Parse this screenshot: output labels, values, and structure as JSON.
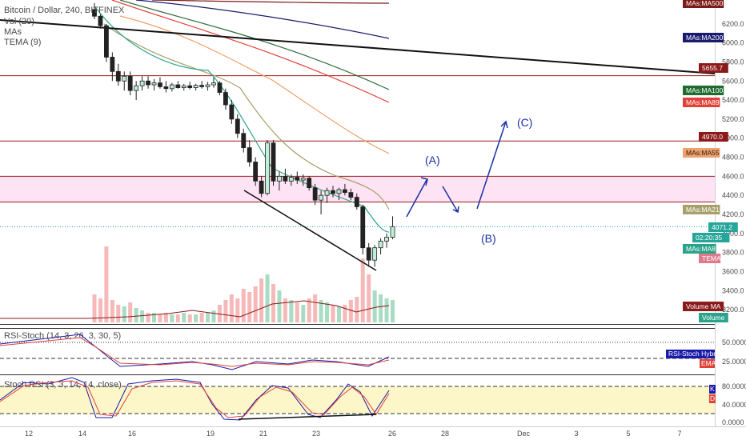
{
  "chart_data": {
    "type": "candlestick",
    "title": "Bitcoin / Dollar, 240, BITFINEX",
    "legend": [
      "Vol (20)",
      "MAs",
      "TEMA (9)"
    ],
    "price_axis": {
      "range": [
        3050,
        6450
      ],
      "ticks": [
        "6200.0",
        "6000.0",
        "5800.0",
        "5600.0",
        "5400.0",
        "5200.0",
        "5000.0",
        "4800.0",
        "4600.0",
        "4400.0",
        "4200.0",
        "4000.0",
        "3800.0",
        "3600.0",
        "3400.0",
        "3200.0"
      ]
    },
    "x_ticks": [
      "12",
      "14",
      "16",
      "19",
      "21",
      "23",
      "26",
      "28",
      "Dec",
      "3",
      "5",
      "7"
    ],
    "ohlc": [
      [
        6350,
        6420,
        6250,
        6280
      ],
      [
        6280,
        6300,
        6150,
        6180
      ],
      [
        6180,
        6200,
        5800,
        5850
      ],
      [
        5850,
        5900,
        5600,
        5700
      ],
      [
        5700,
        5780,
        5550,
        5600
      ],
      [
        5600,
        5700,
        5500,
        5650
      ],
      [
        5650,
        5700,
        5450,
        5500
      ],
      [
        5500,
        5600,
        5400,
        5550
      ],
      [
        5550,
        5650,
        5500,
        5600
      ],
      [
        5600,
        5650,
        5520,
        5560
      ],
      [
        5560,
        5620,
        5500,
        5580
      ],
      [
        5580,
        5640,
        5520,
        5540
      ],
      [
        5540,
        5600,
        5480,
        5520
      ],
      [
        5520,
        5580,
        5490,
        5560
      ],
      [
        5560,
        5600,
        5520,
        5530
      ],
      [
        5530,
        5570,
        5500,
        5550
      ],
      [
        5550,
        5590,
        5510,
        5530
      ],
      [
        5530,
        5570,
        5500,
        5555
      ],
      [
        5555,
        5600,
        5520,
        5540
      ],
      [
        5540,
        5590,
        5500,
        5560
      ],
      [
        5560,
        5640,
        5530,
        5580
      ],
      [
        5580,
        5600,
        5450,
        5480
      ],
      [
        5480,
        5520,
        5300,
        5350
      ],
      [
        5350,
        5400,
        5150,
        5200
      ],
      [
        5200,
        5250,
        5000,
        5050
      ],
      [
        5050,
        5100,
        4850,
        4900
      ],
      [
        4900,
        4980,
        4700,
        4750
      ],
      [
        4750,
        4800,
        4500,
        4550
      ],
      [
        4550,
        4600,
        4380,
        4420
      ],
      [
        4420,
        4980,
        4400,
        4950
      ],
      [
        4950,
        4980,
        4500,
        4550
      ],
      [
        4550,
        4650,
        4450,
        4600
      ],
      [
        4600,
        4680,
        4520,
        4550
      ],
      [
        4550,
        4620,
        4500,
        4590
      ],
      [
        4590,
        4650,
        4520,
        4560
      ],
      [
        4560,
        4620,
        4500,
        4580
      ],
      [
        4580,
        4600,
        4450,
        4480
      ],
      [
        4480,
        4520,
        4300,
        4350
      ],
      [
        4350,
        4450,
        4200,
        4400
      ],
      [
        4400,
        4480,
        4320,
        4450
      ],
      [
        4450,
        4500,
        4380,
        4420
      ],
      [
        4420,
        4480,
        4350,
        4460
      ],
      [
        4460,
        4520,
        4400,
        4430
      ],
      [
        4430,
        4470,
        4350,
        4380
      ],
      [
        4380,
        4420,
        4250,
        4280
      ],
      [
        4280,
        4300,
        3780,
        3850
      ],
      [
        3850,
        3900,
        3650,
        3720
      ],
      [
        3720,
        3880,
        3650,
        3850
      ],
      [
        3850,
        3950,
        3780,
        3920
      ],
      [
        3920,
        4000,
        3850,
        3960
      ],
      [
        3960,
        4180,
        3940,
        4071.2
      ]
    ],
    "volume": [
      0.35,
      0.3,
      0.95,
      0.28,
      0.22,
      0.2,
      0.25,
      0.18,
      0.15,
      0.12,
      0.12,
      0.1,
      0.12,
      0.1,
      0.1,
      0.12,
      0.1,
      0.1,
      0.12,
      0.12,
      0.15,
      0.22,
      0.28,
      0.35,
      0.3,
      0.42,
      0.38,
      0.45,
      0.55,
      0.6,
      0.48,
      0.4,
      0.3,
      0.28,
      0.25,
      0.22,
      0.3,
      0.35,
      0.28,
      0.25,
      0.22,
      0.2,
      0.22,
      0.28,
      0.32,
      0.8,
      0.6,
      0.4,
      0.35,
      0.3,
      0.28
    ],
    "moving_averages": [
      {
        "name": "MAs:MA500",
        "color": "#7d1a1a",
        "values": [
          6480,
          6440
        ]
      },
      {
        "name": "MAs:MA200",
        "color": "#1a1a6e",
        "values": [
          6270,
          5960
        ]
      },
      {
        "name": "MAs:MA100",
        "color": "#2e6b3a",
        "values": [
          6050,
          5450
        ]
      },
      {
        "name": "MAs:MA89",
        "color": "#e0423a",
        "values": [
          5980,
          5320
        ]
      },
      {
        "name": "MAs:MA55",
        "color": "#f0a06a",
        "values": [
          5850,
          4800
        ]
      },
      {
        "name": "MAs:MA21",
        "color": "#a8a06a",
        "values": [
          5720,
          4250
        ]
      },
      {
        "name": "MAs:MA8",
        "color": "#2aa38a",
        "values": [
          5600,
          4120
        ]
      }
    ],
    "price_tags": [
      {
        "text": "MAs:MA500",
        "bg": "#7d1a1a",
        "fg": "#ffffff"
      },
      {
        "text": "MAs:MA200",
        "bg": "#1a1a6e",
        "fg": "#ffffff"
      },
      {
        "text": "5655.7",
        "bg": "#8b1a1a",
        "fg": "#ffffff"
      },
      {
        "text": "MAs:MA100",
        "bg": "#1f6b2e",
        "fg": "#ffffff"
      },
      {
        "text": "MAs:MA89",
        "bg": "#e0423a",
        "fg": "#ffffff"
      },
      {
        "text": "4970.0",
        "bg": "#8b1a1a",
        "fg": "#ffffff"
      },
      {
        "text": "MAs:MA55",
        "bg": "#f0a06a",
        "fg": "#222222"
      },
      {
        "text": "MAs:MA21",
        "bg": "#a8a06a",
        "fg": "#ffffff"
      },
      {
        "text": "4071.2",
        "bg": "#26a69a",
        "fg": "#ffffff"
      },
      {
        "text": "02:20:35",
        "bg": "#26a69a",
        "fg": "#ffffff"
      },
      {
        "text": "MAs:MA8",
        "bg": "#2aa38a",
        "fg": "#ffffff"
      },
      {
        "text": "TEMA",
        "bg": "#e07a8a",
        "fg": "#ffffff"
      },
      {
        "text": "Volume MA",
        "bg": "#8b1a1a",
        "fg": "#ffffff"
      },
      {
        "text": "Volume",
        "bg": "#2aa38a",
        "fg": "#ffffff"
      }
    ],
    "horizontal_levels": [
      5655.7,
      4970.0,
      4330.0
    ],
    "resistance_zone": [
      4330,
      4600
    ],
    "current_price": 4071.2,
    "annotations": [
      "(A)",
      "(B)",
      "(C)"
    ],
    "rsi_stoch": {
      "title": "RSI-Stoch (14, 3, 26, 3, 30, 5)",
      "ticks": [
        "50.0000",
        "25.0000"
      ],
      "tags": [
        {
          "text": "RSI-Stoch Hybrid",
          "bg": "#1a1aa8",
          "fg": "#ffffff"
        },
        {
          "text": "EMA",
          "bg": "#e0423a",
          "fg": "#ffffff"
        }
      ]
    },
    "stoch_rsi": {
      "title": "Stoch RSI (3, 3, 14, 14, close)",
      "ticks": [
        "80.0000",
        "40.0000",
        "0.0000"
      ],
      "tags": [
        {
          "text": "K",
          "bg": "#1a1aa8",
          "fg": "#ffffff"
        },
        {
          "text": "D",
          "bg": "#e0423a",
          "fg": "#ffffff"
        }
      ]
    }
  }
}
